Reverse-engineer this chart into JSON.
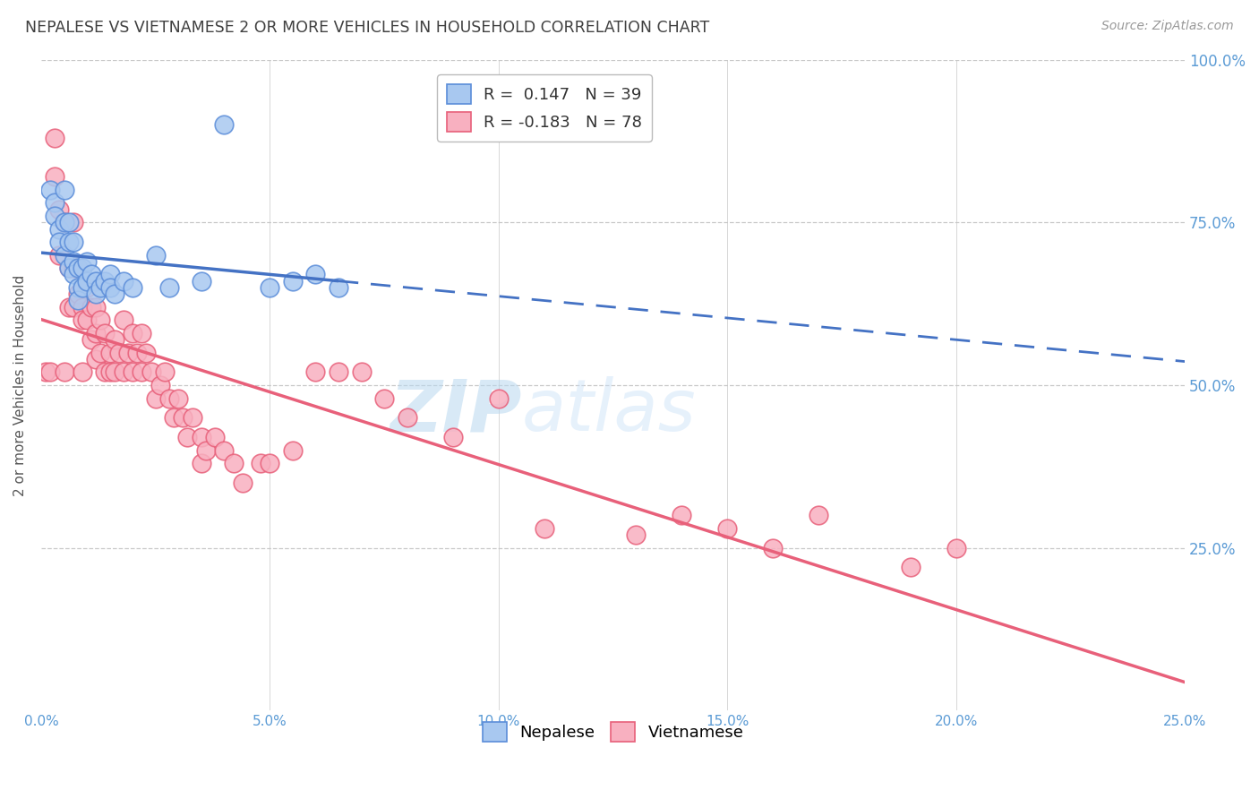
{
  "title": "NEPALESE VS VIETNAMESE 2 OR MORE VEHICLES IN HOUSEHOLD CORRELATION CHART",
  "source": "Source: ZipAtlas.com",
  "xlabel": "",
  "ylabel": "2 or more Vehicles in Household",
  "xmin": 0.0,
  "xmax": 0.25,
  "ymin": 0.0,
  "ymax": 1.0,
  "xticks": [
    0.0,
    0.05,
    0.1,
    0.15,
    0.2,
    0.25
  ],
  "yticks": [
    0.25,
    0.5,
    0.75,
    1.0
  ],
  "ytick_labels": [
    "25.0%",
    "50.0%",
    "75.0%",
    "100.0%"
  ],
  "xtick_labels": [
    "0.0%",
    "",
    "5.0%",
    "",
    "10.0%",
    "",
    "15.0%",
    "",
    "20.0%",
    "",
    "25.0%"
  ],
  "xtick_positions": [
    0.0,
    0.025,
    0.05,
    0.075,
    0.1,
    0.125,
    0.15,
    0.175,
    0.2,
    0.225,
    0.25
  ],
  "nepalese_R": 0.147,
  "nepalese_N": 39,
  "vietnamese_R": -0.183,
  "vietnamese_N": 78,
  "nepalese_color": "#A8C8F0",
  "vietnamese_color": "#F8B0C0",
  "nepalese_edge_color": "#5B8DD9",
  "vietnamese_edge_color": "#E8607A",
  "nepalese_line_color": "#4472C4",
  "vietnamese_line_color": "#E8607A",
  "background_color": "#FFFFFF",
  "grid_color": "#C8C8C8",
  "axis_label_color": "#5B9BD5",
  "title_color": "#404040",
  "nepalese_x": [
    0.002,
    0.003,
    0.003,
    0.004,
    0.004,
    0.005,
    0.005,
    0.005,
    0.006,
    0.006,
    0.006,
    0.007,
    0.007,
    0.007,
    0.008,
    0.008,
    0.008,
    0.009,
    0.009,
    0.01,
    0.01,
    0.011,
    0.012,
    0.012,
    0.013,
    0.014,
    0.015,
    0.015,
    0.016,
    0.018,
    0.02,
    0.025,
    0.028,
    0.035,
    0.04,
    0.05,
    0.055,
    0.06,
    0.065
  ],
  "nepalese_y": [
    0.8,
    0.78,
    0.76,
    0.74,
    0.72,
    0.8,
    0.75,
    0.7,
    0.75,
    0.72,
    0.68,
    0.72,
    0.69,
    0.67,
    0.68,
    0.65,
    0.63,
    0.68,
    0.65,
    0.69,
    0.66,
    0.67,
    0.66,
    0.64,
    0.65,
    0.66,
    0.67,
    0.65,
    0.64,
    0.66,
    0.65,
    0.7,
    0.65,
    0.66,
    0.9,
    0.65,
    0.66,
    0.67,
    0.65
  ],
  "vietnamese_x": [
    0.001,
    0.002,
    0.003,
    0.003,
    0.004,
    0.004,
    0.005,
    0.005,
    0.006,
    0.006,
    0.007,
    0.007,
    0.007,
    0.008,
    0.008,
    0.009,
    0.009,
    0.009,
    0.01,
    0.01,
    0.011,
    0.011,
    0.012,
    0.012,
    0.012,
    0.013,
    0.013,
    0.014,
    0.014,
    0.015,
    0.015,
    0.016,
    0.016,
    0.017,
    0.018,
    0.018,
    0.019,
    0.02,
    0.02,
    0.021,
    0.022,
    0.022,
    0.023,
    0.024,
    0.025,
    0.026,
    0.027,
    0.028,
    0.029,
    0.03,
    0.031,
    0.032,
    0.033,
    0.035,
    0.035,
    0.036,
    0.038,
    0.04,
    0.042,
    0.044,
    0.048,
    0.05,
    0.055,
    0.06,
    0.065,
    0.07,
    0.075,
    0.08,
    0.09,
    0.1,
    0.11,
    0.13,
    0.14,
    0.15,
    0.16,
    0.17,
    0.19,
    0.2
  ],
  "vietnamese_y": [
    0.52,
    0.52,
    0.88,
    0.82,
    0.77,
    0.7,
    0.75,
    0.52,
    0.68,
    0.62,
    0.75,
    0.68,
    0.62,
    0.68,
    0.64,
    0.62,
    0.6,
    0.52,
    0.65,
    0.6,
    0.62,
    0.57,
    0.62,
    0.58,
    0.54,
    0.6,
    0.55,
    0.58,
    0.52,
    0.55,
    0.52,
    0.57,
    0.52,
    0.55,
    0.6,
    0.52,
    0.55,
    0.58,
    0.52,
    0.55,
    0.58,
    0.52,
    0.55,
    0.52,
    0.48,
    0.5,
    0.52,
    0.48,
    0.45,
    0.48,
    0.45,
    0.42,
    0.45,
    0.42,
    0.38,
    0.4,
    0.42,
    0.4,
    0.38,
    0.35,
    0.38,
    0.38,
    0.4,
    0.52,
    0.52,
    0.52,
    0.48,
    0.45,
    0.42,
    0.48,
    0.28,
    0.27,
    0.3,
    0.28,
    0.25,
    0.3,
    0.22,
    0.25
  ]
}
